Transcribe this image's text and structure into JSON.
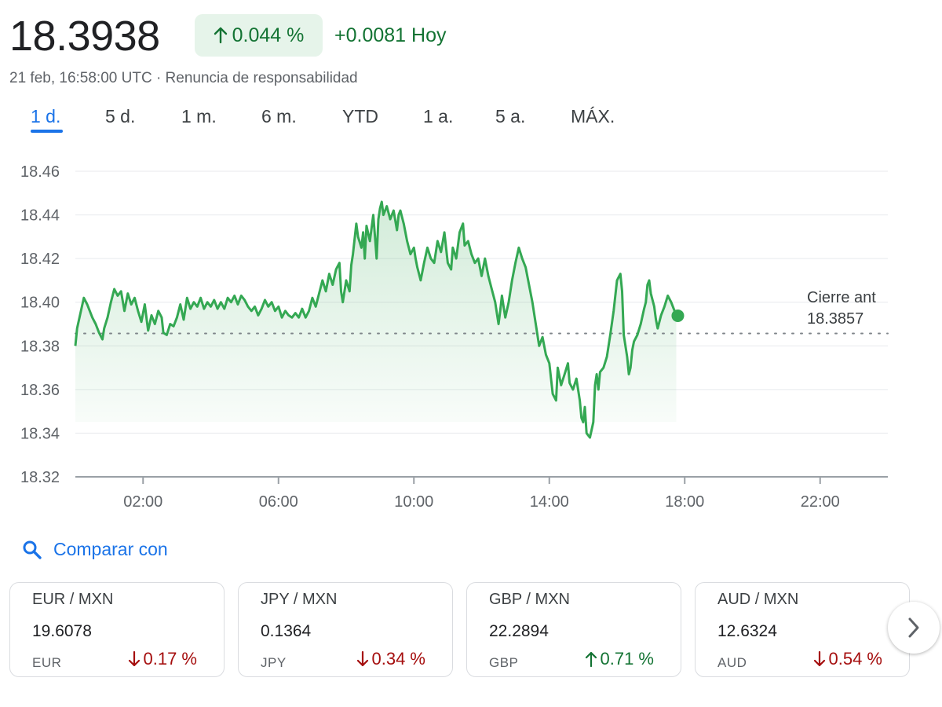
{
  "header": {
    "price": "18.3938",
    "change_pct": "0.044 %",
    "change_abs": "+0.0081 Hoy",
    "meta": "21 feb, 16:58:00 UTC · Renuncia de responsabilidad"
  },
  "tabs": [
    {
      "label": "1 d.",
      "active": true
    },
    {
      "label": "5 d."
    },
    {
      "label": "1 m."
    },
    {
      "label": "6 m."
    },
    {
      "label": "YTD"
    },
    {
      "label": "1 a."
    },
    {
      "label": "5 a."
    },
    {
      "label": "MÁX."
    }
  ],
  "colors": {
    "accent": "#1a73e8",
    "up": "#34a853",
    "up_text": "#137333",
    "down_text": "#a50e0e"
  },
  "chart_data": {
    "type": "line",
    "x_unit": "hours",
    "xlim": [
      0,
      24
    ],
    "ylim": [
      18.32,
      18.46
    ],
    "y_ticks": [
      "18.46",
      "18.44",
      "18.42",
      "18.40",
      "18.38",
      "18.36",
      "18.34",
      "18.32"
    ],
    "x_ticks": [
      {
        "v": 2,
        "label": "02:00"
      },
      {
        "v": 6,
        "label": "06:00"
      },
      {
        "v": 10,
        "label": "10:00"
      },
      {
        "v": 14,
        "label": "14:00"
      },
      {
        "v": 18,
        "label": "18:00"
      },
      {
        "v": 22,
        "label": "22:00"
      }
    ],
    "previous_close": {
      "label": "Cierre ant",
      "value": "18.3857",
      "y": 18.3857
    },
    "series": [
      {
        "color": "#34a853",
        "points": [
          [
            0.0,
            18.38
          ],
          [
            0.05,
            18.388
          ],
          [
            0.15,
            18.395
          ],
          [
            0.25,
            18.402
          ],
          [
            0.35,
            18.399
          ],
          [
            0.5,
            18.393
          ],
          [
            0.6,
            18.39
          ],
          [
            0.7,
            18.386
          ],
          [
            0.8,
            18.383
          ],
          [
            0.85,
            18.388
          ],
          [
            0.95,
            18.393
          ],
          [
            1.05,
            18.4
          ],
          [
            1.15,
            18.406
          ],
          [
            1.25,
            18.403
          ],
          [
            1.35,
            18.405
          ],
          [
            1.45,
            18.396
          ],
          [
            1.55,
            18.404
          ],
          [
            1.65,
            18.399
          ],
          [
            1.75,
            18.402
          ],
          [
            1.85,
            18.396
          ],
          [
            1.95,
            18.391
          ],
          [
            2.05,
            18.399
          ],
          [
            2.15,
            18.387
          ],
          [
            2.25,
            18.394
          ],
          [
            2.35,
            18.39
          ],
          [
            2.45,
            18.396
          ],
          [
            2.55,
            18.393
          ],
          [
            2.6,
            18.386
          ],
          [
            2.7,
            18.385
          ],
          [
            2.8,
            18.39
          ],
          [
            2.9,
            18.389
          ],
          [
            3.0,
            18.393
          ],
          [
            3.1,
            18.399
          ],
          [
            3.2,
            18.392
          ],
          [
            3.3,
            18.402
          ],
          [
            3.4,
            18.397
          ],
          [
            3.5,
            18.4
          ],
          [
            3.6,
            18.398
          ],
          [
            3.7,
            18.402
          ],
          [
            3.8,
            18.397
          ],
          [
            3.9,
            18.4
          ],
          [
            4.0,
            18.398
          ],
          [
            4.1,
            18.401
          ],
          [
            4.2,
            18.397
          ],
          [
            4.3,
            18.4
          ],
          [
            4.4,
            18.397
          ],
          [
            4.5,
            18.402
          ],
          [
            4.6,
            18.4
          ],
          [
            4.7,
            18.403
          ],
          [
            4.8,
            18.399
          ],
          [
            4.9,
            18.403
          ],
          [
            5.0,
            18.401
          ],
          [
            5.1,
            18.398
          ],
          [
            5.2,
            18.396
          ],
          [
            5.3,
            18.398
          ],
          [
            5.4,
            18.394
          ],
          [
            5.5,
            18.397
          ],
          [
            5.6,
            18.401
          ],
          [
            5.7,
            18.398
          ],
          [
            5.8,
            18.4
          ],
          [
            5.9,
            18.396
          ],
          [
            6.0,
            18.398
          ],
          [
            6.1,
            18.393
          ],
          [
            6.2,
            18.396
          ],
          [
            6.3,
            18.394
          ],
          [
            6.4,
            18.393
          ],
          [
            6.5,
            18.395
          ],
          [
            6.6,
            18.393
          ],
          [
            6.7,
            18.397
          ],
          [
            6.8,
            18.393
          ],
          [
            6.9,
            18.396
          ],
          [
            7.0,
            18.402
          ],
          [
            7.1,
            18.398
          ],
          [
            7.2,
            18.404
          ],
          [
            7.3,
            18.41
          ],
          [
            7.4,
            18.405
          ],
          [
            7.5,
            18.413
          ],
          [
            7.6,
            18.408
          ],
          [
            7.7,
            18.415
          ],
          [
            7.8,
            18.418
          ],
          [
            7.85,
            18.405
          ],
          [
            7.9,
            18.4
          ],
          [
            8.0,
            18.41
          ],
          [
            8.1,
            18.405
          ],
          [
            8.15,
            18.417
          ],
          [
            8.2,
            18.422
          ],
          [
            8.3,
            18.436
          ],
          [
            8.35,
            18.43
          ],
          [
            8.45,
            18.425
          ],
          [
            8.5,
            18.432
          ],
          [
            8.55,
            18.42
          ],
          [
            8.6,
            18.435
          ],
          [
            8.7,
            18.428
          ],
          [
            8.8,
            18.44
          ],
          [
            8.85,
            18.43
          ],
          [
            8.9,
            18.42
          ],
          [
            8.95,
            18.438
          ],
          [
            9.0,
            18.443
          ],
          [
            9.05,
            18.446
          ],
          [
            9.1,
            18.44
          ],
          [
            9.2,
            18.444
          ],
          [
            9.3,
            18.438
          ],
          [
            9.4,
            18.442
          ],
          [
            9.5,
            18.433
          ],
          [
            9.55,
            18.44
          ],
          [
            9.6,
            18.442
          ],
          [
            9.7,
            18.436
          ],
          [
            9.8,
            18.428
          ],
          [
            9.9,
            18.422
          ],
          [
            10.0,
            18.425
          ],
          [
            10.05,
            18.42
          ],
          [
            10.1,
            18.416
          ],
          [
            10.2,
            18.41
          ],
          [
            10.3,
            18.418
          ],
          [
            10.4,
            18.425
          ],
          [
            10.5,
            18.42
          ],
          [
            10.6,
            18.418
          ],
          [
            10.7,
            18.428
          ],
          [
            10.8,
            18.423
          ],
          [
            10.9,
            18.432
          ],
          [
            11.0,
            18.418
          ],
          [
            11.1,
            18.415
          ],
          [
            11.15,
            18.425
          ],
          [
            11.25,
            18.42
          ],
          [
            11.35,
            18.432
          ],
          [
            11.45,
            18.436
          ],
          [
            11.5,
            18.426
          ],
          [
            11.6,
            18.428
          ],
          [
            11.7,
            18.422
          ],
          [
            11.8,
            18.418
          ],
          [
            11.9,
            18.42
          ],
          [
            12.0,
            18.412
          ],
          [
            12.1,
            18.42
          ],
          [
            12.2,
            18.412
          ],
          [
            12.3,
            18.406
          ],
          [
            12.4,
            18.4
          ],
          [
            12.5,
            18.39
          ],
          [
            12.55,
            18.396
          ],
          [
            12.6,
            18.403
          ],
          [
            12.65,
            18.398
          ],
          [
            12.7,
            18.393
          ],
          [
            12.8,
            18.4
          ],
          [
            12.9,
            18.41
          ],
          [
            13.0,
            18.418
          ],
          [
            13.1,
            18.425
          ],
          [
            13.2,
            18.42
          ],
          [
            13.3,
            18.416
          ],
          [
            13.4,
            18.408
          ],
          [
            13.5,
            18.4
          ],
          [
            13.6,
            18.39
          ],
          [
            13.7,
            18.38
          ],
          [
            13.8,
            18.384
          ],
          [
            13.9,
            18.376
          ],
          [
            14.0,
            18.372
          ],
          [
            14.1,
            18.358
          ],
          [
            14.2,
            18.355
          ],
          [
            14.25,
            18.37
          ],
          [
            14.35,
            18.362
          ],
          [
            14.45,
            18.367
          ],
          [
            14.55,
            18.372
          ],
          [
            14.6,
            18.363
          ],
          [
            14.7,
            18.36
          ],
          [
            14.8,
            18.365
          ],
          [
            14.9,
            18.355
          ],
          [
            14.95,
            18.347
          ],
          [
            15.0,
            18.345
          ],
          [
            15.05,
            18.352
          ],
          [
            15.1,
            18.34
          ],
          [
            15.2,
            18.338
          ],
          [
            15.3,
            18.345
          ],
          [
            15.35,
            18.362
          ],
          [
            15.4,
            18.367
          ],
          [
            15.45,
            18.36
          ],
          [
            15.5,
            18.368
          ],
          [
            15.6,
            18.37
          ],
          [
            15.7,
            18.375
          ],
          [
            15.8,
            18.385
          ],
          [
            15.9,
            18.396
          ],
          [
            16.0,
            18.41
          ],
          [
            16.1,
            18.413
          ],
          [
            16.15,
            18.405
          ],
          [
            16.2,
            18.385
          ],
          [
            16.3,
            18.375
          ],
          [
            16.35,
            18.367
          ],
          [
            16.4,
            18.37
          ],
          [
            16.45,
            18.378
          ],
          [
            16.5,
            18.382
          ],
          [
            16.6,
            18.385
          ],
          [
            16.7,
            18.39
          ],
          [
            16.8,
            18.397
          ],
          [
            16.85,
            18.4
          ],
          [
            16.9,
            18.408
          ],
          [
            16.95,
            18.41
          ],
          [
            17.0,
            18.404
          ],
          [
            17.1,
            18.398
          ],
          [
            17.15,
            18.392
          ],
          [
            17.2,
            18.388
          ],
          [
            17.3,
            18.394
          ],
          [
            17.4,
            18.398
          ],
          [
            17.5,
            18.403
          ],
          [
            17.6,
            18.4
          ],
          [
            17.7,
            18.396
          ],
          [
            17.75,
            18.3938
          ]
        ]
      }
    ]
  },
  "compare": {
    "label": "Comparar con"
  },
  "cards": [
    {
      "pair": "EUR / MXN",
      "value": "19.6078",
      "code": "EUR",
      "change": "0.17 %",
      "direction": "down"
    },
    {
      "pair": "JPY / MXN",
      "value": "0.1364",
      "code": "JPY",
      "change": "0.34 %",
      "direction": "down"
    },
    {
      "pair": "GBP / MXN",
      "value": "22.2894",
      "code": "GBP",
      "change": "0.71 %",
      "direction": "up"
    },
    {
      "pair": "AUD / MXN",
      "value": "12.6324",
      "code": "AUD",
      "change": "0.54 %",
      "direction": "down"
    }
  ],
  "icons": {
    "compare": "search-icon",
    "next": "chevron-right-icon",
    "up": "arrow-up-icon",
    "down": "arrow-down-icon"
  }
}
